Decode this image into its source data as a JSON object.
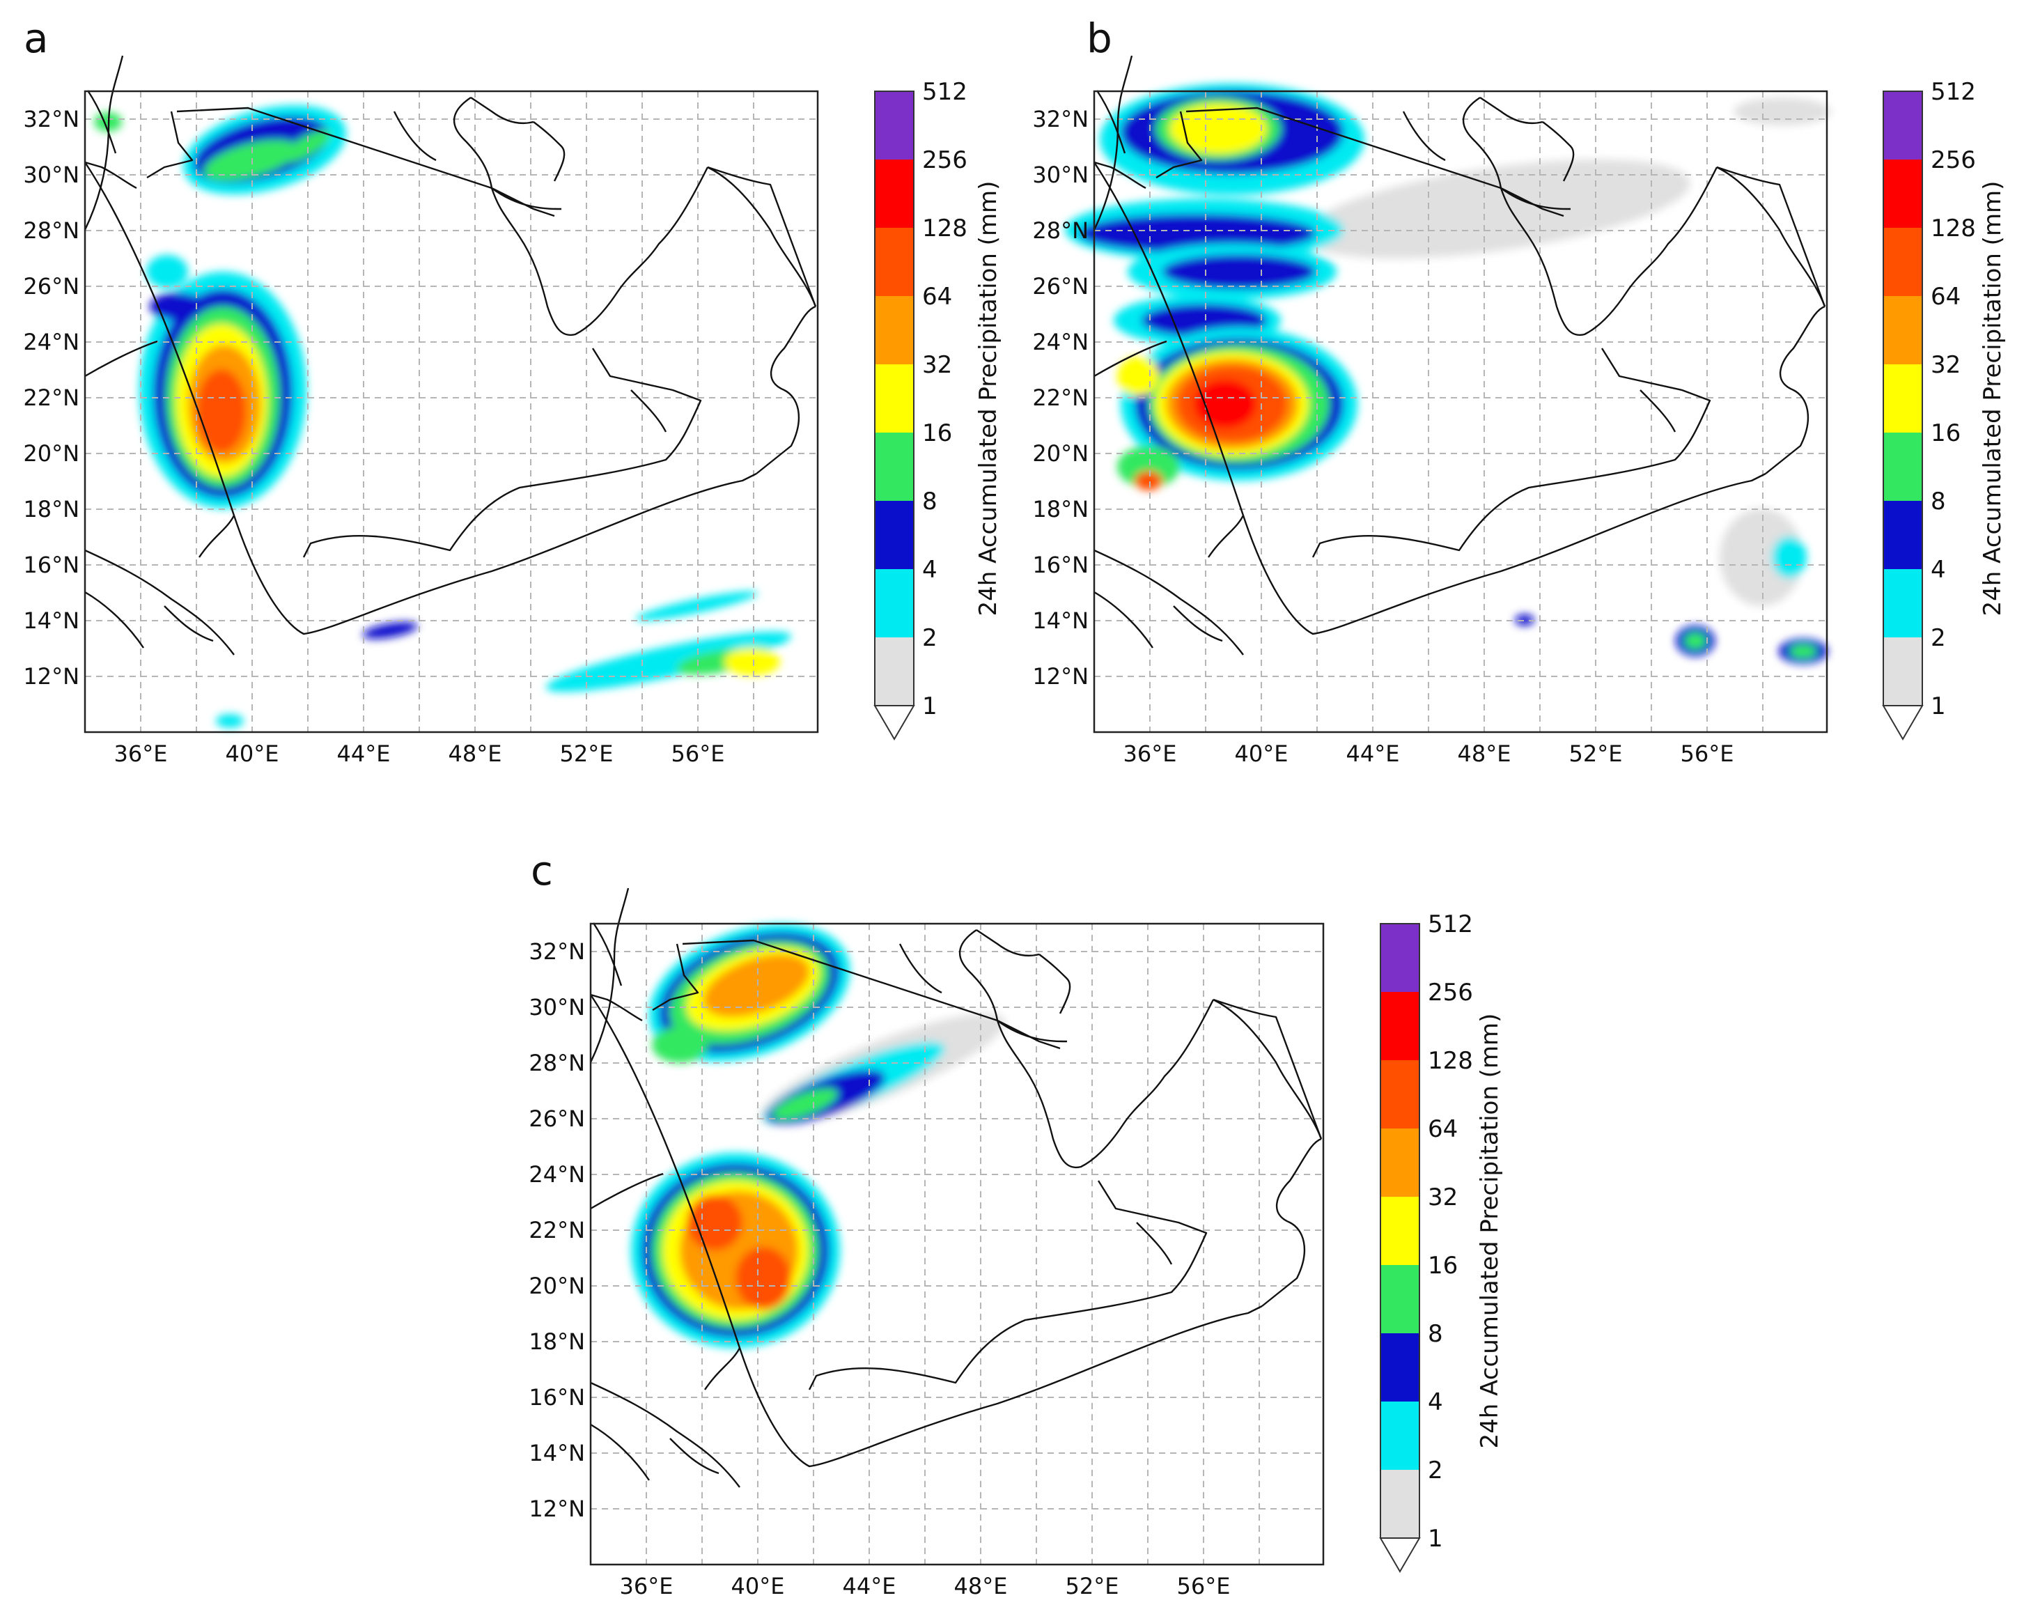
{
  "panels": [
    {
      "letter": "a"
    },
    {
      "letter": "b"
    },
    {
      "letter": "c"
    }
  ],
  "lat_ticks": [
    "12°N",
    "14°N",
    "16°N",
    "18°N",
    "20°N",
    "22°N",
    "24°N",
    "26°N",
    "28°N",
    "30°N",
    "32°N"
  ],
  "lon_ticks": [
    "36°E",
    "40°E",
    "44°E",
    "48°E",
    "52°E",
    "56°E"
  ],
  "colorbar": {
    "label": "24h Accumulated Precipitation (mm)",
    "levels": [
      "1",
      "2",
      "4",
      "8",
      "16",
      "32",
      "64",
      "128",
      "256",
      "512"
    ],
    "colors": [
      "#e0e0e0",
      "#00eaf2",
      "#0a0fcc",
      "#33e860",
      "#ffff00",
      "#ff9a00",
      "#ff5000",
      "#ff0000",
      "#7c30c8"
    ]
  },
  "map_extent": {
    "lon": [
      34,
      60
    ],
    "lat": [
      10,
      33
    ]
  },
  "colors": {
    "axis": "#222222",
    "grid": "#b5b5b5",
    "coast": "#111111",
    "border": "#333333",
    "neighbor": "#666666"
  }
}
